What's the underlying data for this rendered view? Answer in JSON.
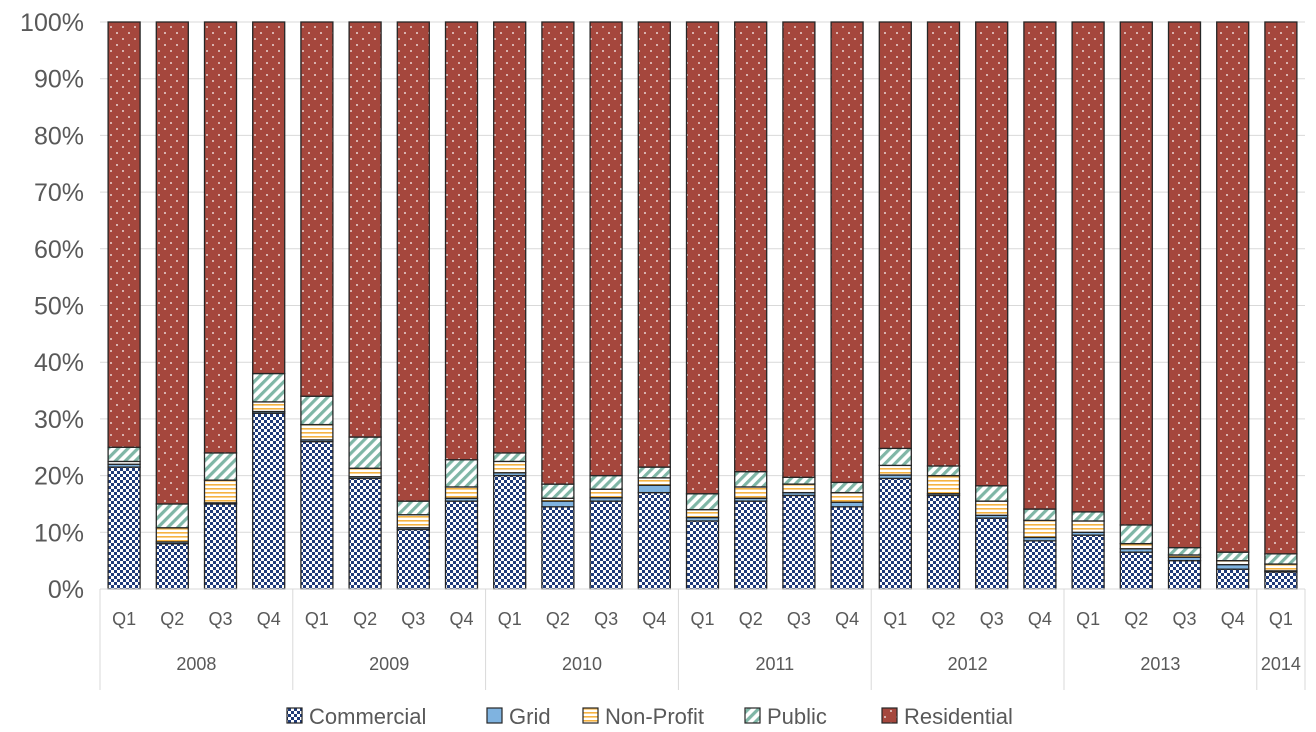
{
  "chart_data": {
    "type": "bar",
    "stacked": true,
    "percent_stacked": true,
    "title": "",
    "xlabel": "",
    "ylabel": "",
    "ylim": [
      0,
      100
    ],
    "y_ticks": [
      "0%",
      "10%",
      "20%",
      "30%",
      "40%",
      "50%",
      "60%",
      "70%",
      "80%",
      "90%",
      "100%"
    ],
    "grid": true,
    "legend_position": "bottom",
    "categories": [
      "2008 Q1",
      "2008 Q2",
      "2008 Q3",
      "2008 Q4",
      "2009 Q1",
      "2009 Q2",
      "2009 Q3",
      "2009 Q4",
      "2010 Q1",
      "2010 Q2",
      "2010 Q3",
      "2010 Q4",
      "2011 Q1",
      "2011 Q2",
      "2011 Q3",
      "2011 Q4",
      "2012 Q1",
      "2012 Q2",
      "2012 Q3",
      "2012 Q4",
      "2013 Q1",
      "2013 Q2",
      "2013 Q3",
      "2013 Q4",
      "2014 Q1"
    ],
    "quarter_labels": [
      "Q1",
      "Q2",
      "Q3",
      "Q4",
      "Q1",
      "Q2",
      "Q3",
      "Q4",
      "Q1",
      "Q2",
      "Q3",
      "Q4",
      "Q1",
      "Q2",
      "Q3",
      "Q4",
      "Q1",
      "Q2",
      "Q3",
      "Q4",
      "Q1",
      "Q2",
      "Q3",
      "Q4",
      "Q1"
    ],
    "year_groups": [
      {
        "label": "2008",
        "count": 4
      },
      {
        "label": "2009",
        "count": 4
      },
      {
        "label": "2010",
        "count": 4
      },
      {
        "label": "2011",
        "count": 4
      },
      {
        "label": "2012",
        "count": 4
      },
      {
        "label": "2013",
        "count": 4
      },
      {
        "label": "2014",
        "count": 1
      }
    ],
    "series": [
      {
        "name": "Commercial",
        "color": "#1f3b7a",
        "pattern": "checker",
        "values": [
          21.5,
          8.0,
          15.0,
          31.0,
          26.0,
          19.5,
          10.5,
          15.5,
          20.0,
          14.5,
          15.5,
          17.0,
          12.0,
          15.5,
          16.5,
          14.5,
          19.5,
          16.5,
          12.5,
          8.5,
          9.5,
          6.5,
          5.0,
          3.5,
          3.0
        ]
      },
      {
        "name": "Grid",
        "color": "#7fb3e0",
        "pattern": "solid",
        "values": [
          0.5,
          0.3,
          0.2,
          0.3,
          0.3,
          0.3,
          0.3,
          0.5,
          0.5,
          1.0,
          0.6,
          1.3,
          0.6,
          0.5,
          0.5,
          0.8,
          0.6,
          0.3,
          0.5,
          0.6,
          0.5,
          0.6,
          0.6,
          0.8,
          0.2
        ]
      },
      {
        "name": "Non-Profit",
        "color": "#f5b342",
        "pattern": "hlines",
        "values": [
          0.5,
          2.5,
          4.0,
          1.7,
          2.7,
          1.5,
          2.3,
          2.0,
          2.0,
          0.5,
          1.5,
          1.3,
          1.4,
          2.0,
          1.5,
          1.7,
          1.7,
          3.2,
          2.5,
          3.0,
          2.0,
          0.9,
          0.4,
          0.7,
          1.2
        ]
      },
      {
        "name": "Public",
        "color": "#8ec3b4",
        "pattern": "diagonal",
        "values": [
          2.5,
          4.2,
          4.8,
          5.0,
          5.0,
          5.5,
          2.4,
          4.8,
          1.5,
          2.5,
          2.4,
          1.9,
          2.8,
          2.7,
          1.2,
          1.8,
          3.0,
          1.7,
          2.7,
          2.0,
          1.6,
          3.3,
          1.3,
          1.5,
          1.8
        ]
      },
      {
        "name": "Residential",
        "color": "#a5473d",
        "pattern": "dots",
        "values": [
          75.0,
          85.0,
          76.0,
          62.0,
          66.0,
          73.2,
          84.5,
          77.2,
          76.0,
          81.5,
          80.0,
          78.5,
          83.2,
          79.3,
          80.3,
          81.2,
          75.2,
          78.3,
          81.8,
          85.9,
          86.4,
          88.7,
          92.7,
          93.5,
          93.8
        ]
      }
    ]
  }
}
